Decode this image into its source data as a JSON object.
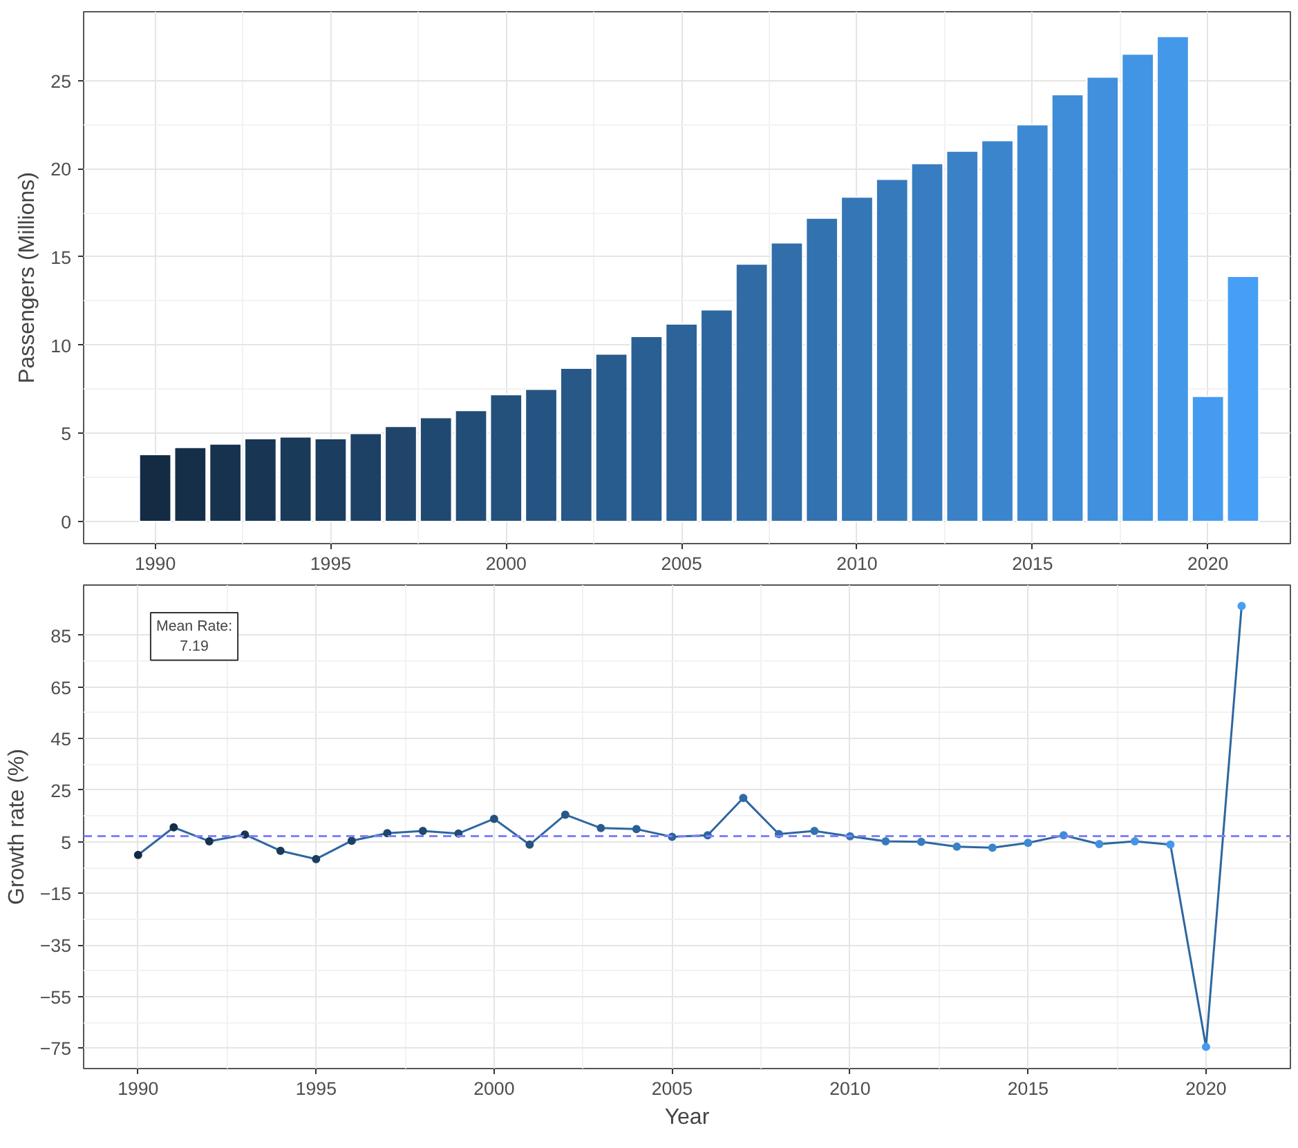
{
  "chart_data": [
    {
      "type": "bar",
      "ylabel": "Passengers (Millions)",
      "x": [
        1990,
        1991,
        1992,
        1993,
        1994,
        1995,
        1996,
        1997,
        1998,
        1999,
        2000,
        2001,
        2002,
        2003,
        2004,
        2005,
        2006,
        2007,
        2008,
        2009,
        2010,
        2011,
        2012,
        2013,
        2014,
        2015,
        2016,
        2017,
        2018,
        2019,
        2020,
        2021
      ],
      "values": [
        3.8,
        4.2,
        4.4,
        4.7,
        4.8,
        4.7,
        5.0,
        5.4,
        5.9,
        6.3,
        7.2,
        7.5,
        8.7,
        9.5,
        10.5,
        11.2,
        12.0,
        14.6,
        15.8,
        17.2,
        18.4,
        19.4,
        20.3,
        21.0,
        21.6,
        22.5,
        24.2,
        25.2,
        26.5,
        27.5,
        7.1,
        13.9
      ],
      "colors": [
        "#132b43",
        "#152f49",
        "#16324e",
        "#183654",
        "#1a3a5a",
        "#1b3e60",
        "#1d4165",
        "#1f456b",
        "#204971",
        "#224d77",
        "#24507c",
        "#255482",
        "#275888",
        "#295c8e",
        "#2a5f93",
        "#2c6399",
        "#2e679f",
        "#306ba5",
        "#316eaa",
        "#3372b0",
        "#3576b6",
        "#367abc",
        "#387dc1",
        "#3a81c7",
        "#3b85cd",
        "#3d89d3",
        "#3f8cd8",
        "#4090de",
        "#4294e4",
        "#4498ea",
        "#459bef",
        "#479ff5"
      ],
      "xlim": [
        1987.96,
        2022.35
      ],
      "ylim": [
        -1.25,
        28.9
      ],
      "xticks": [
        1990,
        1995,
        2000,
        2005,
        2010,
        2015,
        2020
      ],
      "yticks": [
        0,
        5,
        10,
        15,
        20,
        25
      ],
      "grid": true
    },
    {
      "type": "line",
      "xlabel": "Year",
      "ylabel": "Growth rate (%)",
      "marker": "circle",
      "series": [
        {
          "color": "#2e679f",
          "x": [
            1990,
            1991,
            1992,
            1993,
            1994,
            1995,
            1996,
            1997,
            1998,
            1999,
            2000,
            2001,
            2002,
            2003,
            2004,
            2005,
            2006,
            2007,
            2008,
            2009,
            2010,
            2011,
            2012,
            2013,
            2014,
            2015,
            2016,
            2017,
            2018,
            2019,
            2020,
            2021
          ],
          "values": [
            -0.1,
            10.6,
            5.2,
            7.8,
            1.5,
            -1.7,
            5.4,
            8.3,
            9.2,
            8.2,
            13.9,
            3.9,
            15.5,
            10.3,
            9.9,
            6.9,
            7.5,
            22.0,
            8.0,
            9.2,
            7.1,
            5.2,
            5.0,
            3.1,
            2.7,
            4.6,
            7.5,
            4.1,
            5.2,
            3.9,
            -74.5,
            96.4
          ],
          "colors": [
            "#132b43",
            "#152f49",
            "#16324e",
            "#183654",
            "#1a3a5a",
            "#1b3e60",
            "#1d4165",
            "#1f456b",
            "#204971",
            "#224d77",
            "#24507c",
            "#255482",
            "#275888",
            "#295c8e",
            "#2a5f93",
            "#2c6399",
            "#2e679f",
            "#306ba5",
            "#316eaa",
            "#3372b0",
            "#3576b6",
            "#367abc",
            "#387dc1",
            "#3a81c7",
            "#3b85cd",
            "#3d89d3",
            "#3f8cd8",
            "#4090de",
            "#4294e4",
            "#4498ea",
            "#459bef",
            "#479ff5"
          ]
        }
      ],
      "ref_lines": [
        {
          "axis": "y",
          "value": 7.19,
          "color": "#8080ff",
          "line_style": "dashed"
        }
      ],
      "annotations": [
        "Mean Rate:\n7.19"
      ],
      "xlim": [
        1988.47,
        2022.37
      ],
      "ylim": [
        -82.9,
        104.5
      ],
      "xticks": [
        1990,
        1995,
        2000,
        2005,
        2010,
        2015,
        2020
      ],
      "yticks": [
        -75,
        -55,
        -35,
        -15,
        5,
        25,
        45,
        65,
        85
      ],
      "grid": true
    }
  ]
}
